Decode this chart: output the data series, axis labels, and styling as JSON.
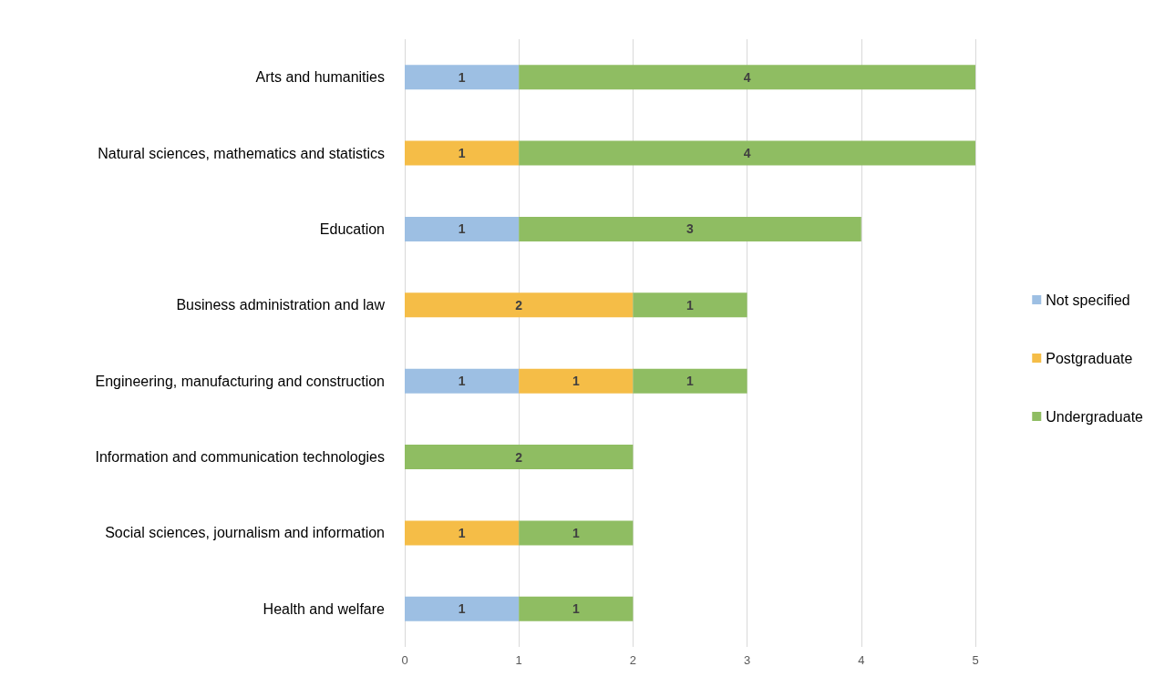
{
  "chart_data": {
    "type": "bar",
    "orientation": "horizontal",
    "stacked": true,
    "categories": [
      "Arts and humanities",
      "Natural sciences, mathematics and statistics",
      "Education",
      "Business administration and law",
      "Engineering, manufacturing and construction",
      "Information and communication technologies",
      "Social sciences, journalism and information",
      "Health and welfare"
    ],
    "series": [
      {
        "name": "Not specified",
        "color": "#9dbfe3",
        "values": [
          1,
          null,
          1,
          null,
          1,
          null,
          null,
          1
        ]
      },
      {
        "name": "Postgraduate",
        "color": "#f5bd47",
        "values": [
          null,
          1,
          null,
          2,
          1,
          null,
          1,
          null
        ]
      },
      {
        "name": "Undergraduate",
        "color": "#8fbd62",
        "values": [
          4,
          4,
          3,
          1,
          1,
          2,
          1,
          1
        ]
      }
    ],
    "xlim": [
      0,
      5
    ],
    "xticks": [
      0,
      1,
      2,
      3,
      4,
      5
    ],
    "grid": "x",
    "legend": "right",
    "data_labels": true
  }
}
